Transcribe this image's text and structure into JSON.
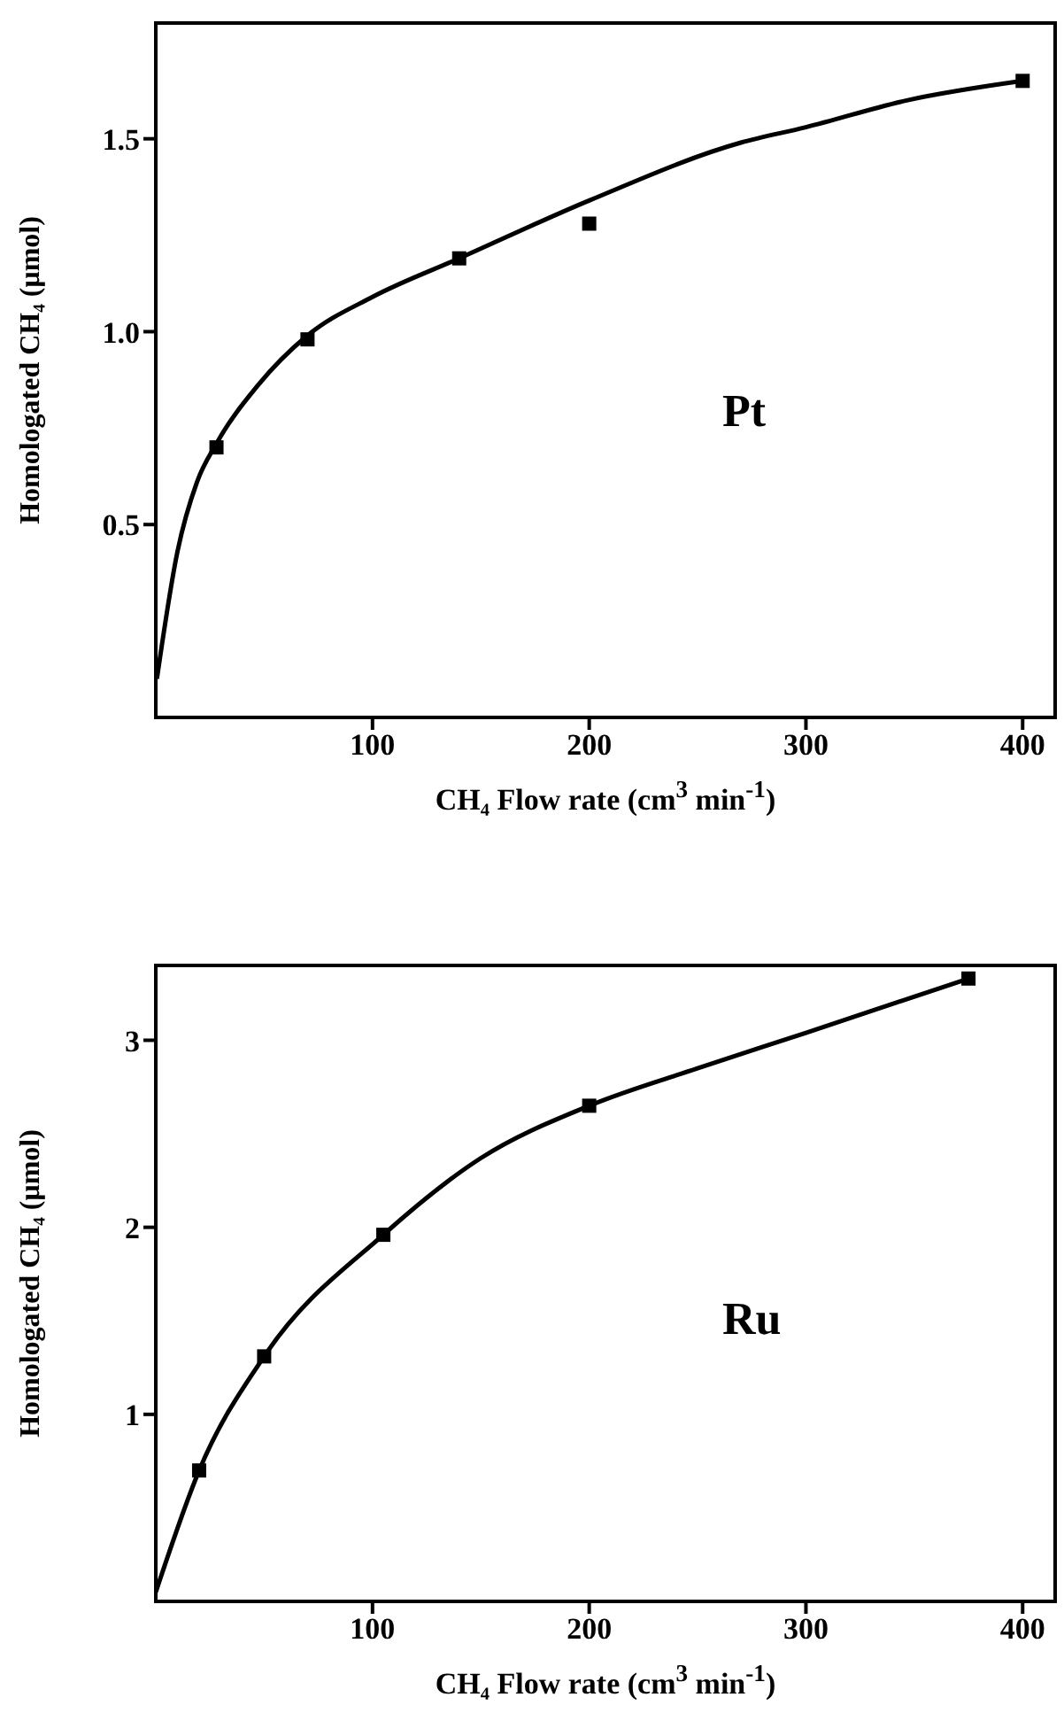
{
  "chart_data": [
    {
      "type": "scatter",
      "xlabel": "CH₄ Flow rate  (cm$^{3}$ min$^{-1}$)",
      "ylabel": "Homologated  CH₄  (μmol)",
      "annotations": [
        "Pt"
      ],
      "xlim": [
        0,
        415
      ],
      "ylim": [
        0,
        1.8
      ],
      "xticks": [
        100,
        200,
        300,
        400
      ],
      "yticks": [
        0.5,
        {
          "value": 1,
          "label": "1.0"
        },
        1.5
      ],
      "grid": false,
      "series": [
        {
          "type": "scatter",
          "color": "#000000",
          "marker": "square",
          "x": [
            28,
            70,
            140,
            200,
            400
          ],
          "values": [
            0.7,
            0.98,
            1.19,
            1.28,
            1.65
          ]
        },
        {
          "type": "line",
          "color": "#000000",
          "marker": "none",
          "line_style": "solid",
          "x": [
            0.5,
            10,
            19,
            28,
            47,
            70,
            100,
            140,
            200,
            270,
            300,
            347,
            400
          ],
          "values": [
            0.1,
            0.43,
            0.61,
            0.71,
            0.86,
            0.99,
            1.09,
            1.19,
            1.34,
            1.49,
            1.53,
            1.6,
            1.65
          ]
        }
      ]
    },
    {
      "type": "scatter",
      "xlabel": "CH₄  Flow rate  (cm$^{3}$ min$^{-1}$)",
      "ylabel": "Homologated  CH₄  (μmol)",
      "annotations": [
        "Ru"
      ],
      "xlim": [
        0,
        415
      ],
      "ylim": [
        0,
        3.4
      ],
      "xticks": [
        100,
        200,
        300,
        400
      ],
      "yticks": [
        1,
        2,
        3
      ],
      "grid": false,
      "series": [
        {
          "type": "scatter",
          "color": "#000000",
          "marker": "square",
          "x": [
            20,
            50,
            105,
            200,
            375
          ],
          "values": [
            0.7,
            1.31,
            1.96,
            2.65,
            3.33
          ]
        },
        {
          "type": "line",
          "color": "#000000",
          "marker": "none",
          "line_style": "solid",
          "x": [
            0,
            20,
            50,
            105,
            150,
            200,
            250,
            300,
            375
          ],
          "values": [
            0.05,
            0.7,
            1.31,
            1.96,
            2.37,
            2.65,
            2.85,
            3.04,
            3.33
          ]
        }
      ]
    }
  ]
}
